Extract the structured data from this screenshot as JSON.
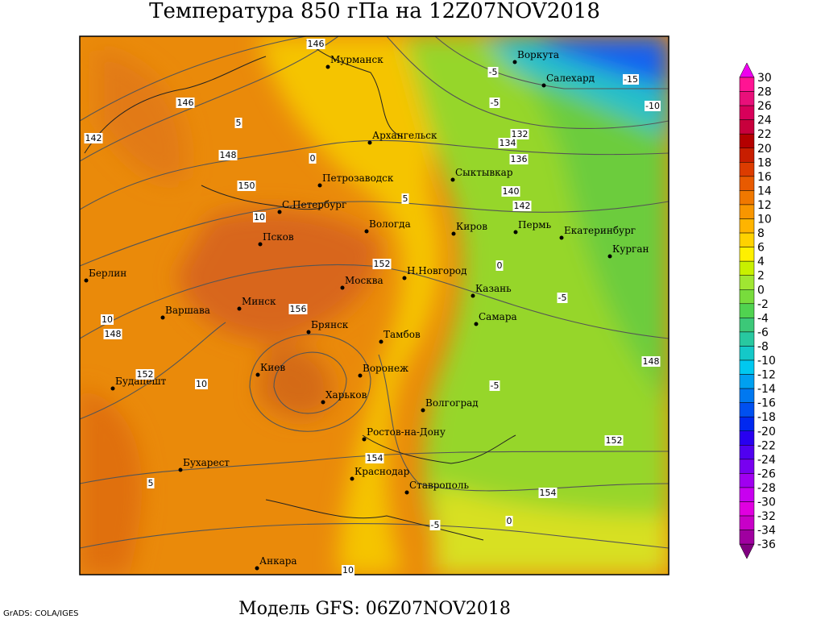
{
  "header": {
    "title": "Температура 850 гПа на 12Z07NOV2018"
  },
  "footer": {
    "model": "Модель GFS: 06Z07NOV2018",
    "credit": "GrADS: COLA/IGES"
  },
  "cities": [
    "Мурманск",
    "Воркута",
    "Салехард",
    "Архангельск",
    "Сыктывкар",
    "Петрозаводск",
    "С.Петербург",
    "Вологда",
    "Киров",
    "Пермь",
    "Екатеринбург",
    "Курган",
    "Псков",
    "Берлин",
    "Москва",
    "Н.Новгород",
    "Казань",
    "Минск",
    "Варшава",
    "Брянск",
    "Самара",
    "Тамбов",
    "Киев",
    "Воронеж",
    "Будапешт",
    "Харьков",
    "Волгоград",
    "Ростов-на-Дону",
    "Бухарест",
    "Краснодар",
    "Ставрополь",
    "Анкара"
  ],
  "contour_labels": [
    146,
    146,
    142,
    148,
    150,
    152,
    156,
    152,
    154,
    154,
    152,
    148,
    148,
    132,
    134,
    136,
    140,
    142,
    -5,
    -15,
    -10,
    -5,
    5,
    0,
    0,
    10,
    5,
    -5,
    10,
    10,
    -5,
    0,
    10,
    5,
    -5
  ],
  "colorbar": {
    "ticks": [
      30,
      28,
      26,
      24,
      22,
      20,
      18,
      16,
      14,
      12,
      10,
      8,
      6,
      4,
      2,
      0,
      -2,
      -4,
      -6,
      -8,
      -10,
      -12,
      -14,
      -16,
      -18,
      -20,
      -22,
      -24,
      -26,
      -28,
      -30,
      -32,
      -34,
      -36
    ],
    "colors": [
      "#ee00ee",
      "#ff1493",
      "#e8107a",
      "#d8005a",
      "#c8003c",
      "#b40000",
      "#c81e00",
      "#dc3c00",
      "#e85a00",
      "#f07800",
      "#f89600",
      "#ffb400",
      "#ffd200",
      "#fff000",
      "#c8f000",
      "#a0e632",
      "#78dc3c",
      "#50d250",
      "#3cc878",
      "#28c8a0",
      "#14c8c8",
      "#00c8f0",
      "#00a0f0",
      "#0078f0",
      "#0050f0",
      "#0028f0",
      "#2800f0",
      "#5000f0",
      "#7800f0",
      "#a000f0",
      "#c800f0",
      "#e000e0",
      "#c800c8",
      "#a000a0",
      "#800080"
    ]
  }
}
